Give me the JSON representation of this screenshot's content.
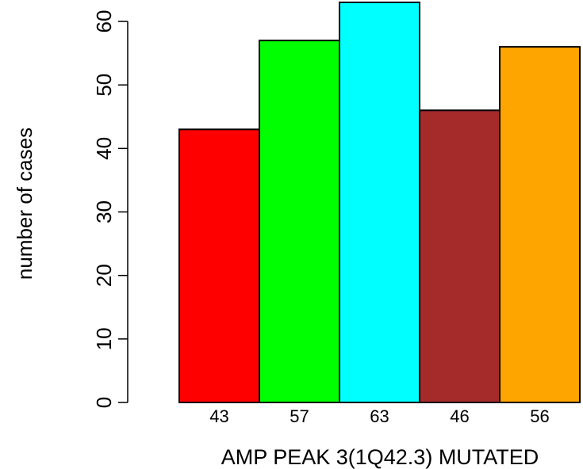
{
  "chart_data": {
    "type": "bar",
    "categories": [
      "43",
      "57",
      "63",
      "46",
      "56"
    ],
    "values": [
      43,
      57,
      63,
      46,
      56
    ],
    "colors": [
      "#ff0000",
      "#00ff00",
      "#00ffff",
      "#a52a2a",
      "#ffa500"
    ],
    "xlabel": "AMP PEAK  3(1Q42.3) MUTATED",
    "ylabel": "number of cases",
    "yticks": [
      0,
      10,
      20,
      30,
      40,
      50,
      60
    ],
    "ylim": [
      0,
      63
    ],
    "grid": false
  }
}
